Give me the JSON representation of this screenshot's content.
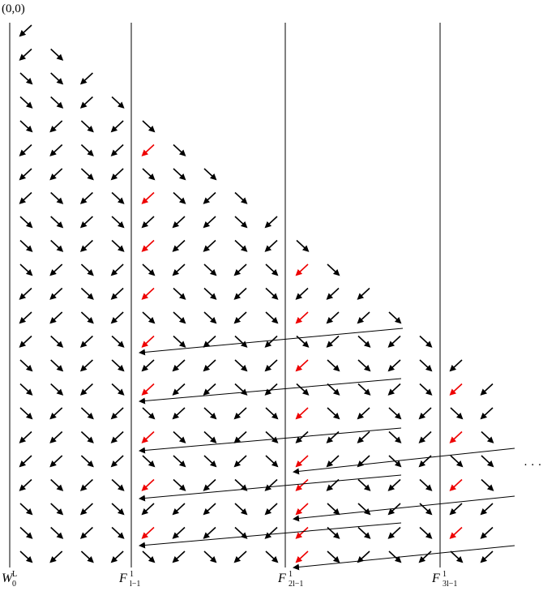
{
  "origin_label": "(0,0)",
  "axis_labels": [
    {
      "main": "W",
      "sup": "L",
      "sub": "0"
    },
    {
      "main": "F",
      "sup": "1",
      "sub": "l−1"
    },
    {
      "main": "F",
      "sup": "1",
      "sub": "2l−1"
    },
    {
      "main": "F",
      "sup": "1",
      "sub": "3l−1"
    }
  ],
  "ellipsis": "· · ·"
}
